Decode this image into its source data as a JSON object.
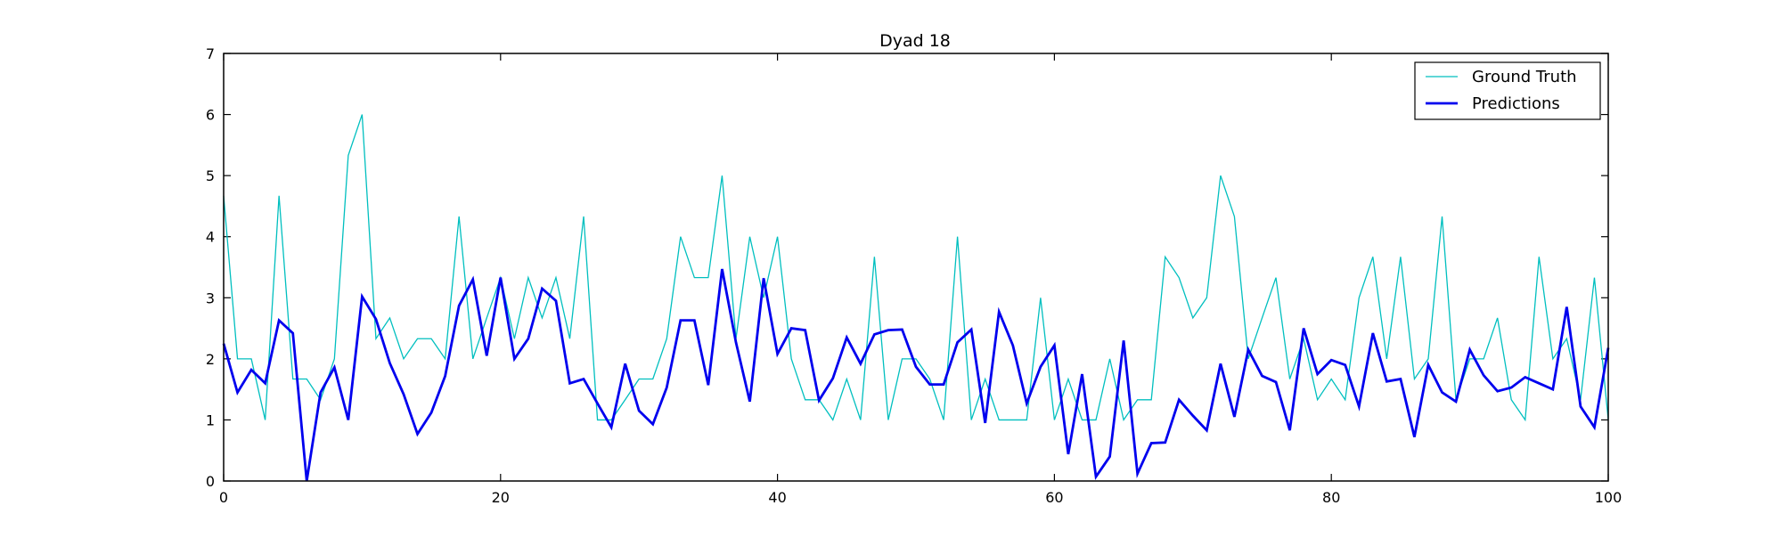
{
  "chart_data": {
    "type": "line",
    "title": "Dyad 18",
    "xlabel": "",
    "ylabel": "",
    "xlim": [
      0,
      100
    ],
    "ylim": [
      0,
      7
    ],
    "x_ticks": [
      0,
      20,
      40,
      60,
      80,
      100
    ],
    "y_ticks": [
      0,
      1,
      2,
      3,
      4,
      5,
      6,
      7
    ],
    "grid": false,
    "legend_position": "top-right",
    "series": [
      {
        "name": "Ground Truth",
        "color": "#00bfbf",
        "values": [
          4.67,
          2.0,
          2.0,
          1.0,
          4.67,
          1.67,
          1.67,
          1.33,
          2.0,
          5.33,
          6.0,
          2.33,
          2.67,
          2.0,
          2.33,
          2.33,
          2.0,
          4.33,
          2.0,
          2.67,
          3.33,
          2.33,
          3.33,
          2.67,
          3.33,
          2.33,
          4.33,
          1.0,
          1.0,
          1.33,
          1.67,
          1.67,
          2.33,
          4.0,
          3.33,
          3.33,
          5.0,
          2.33,
          4.0,
          3.0,
          4.0,
          2.0,
          1.33,
          1.33,
          1.0,
          1.67,
          1.0,
          3.67,
          1.0,
          2.0,
          2.0,
          1.67,
          1.0,
          4.0,
          1.0,
          1.67,
          1.0,
          1.0,
          1.0,
          3.0,
          1.0,
          1.67,
          1.0,
          1.0,
          2.0,
          1.0,
          1.33,
          1.33,
          3.67,
          3.33,
          2.67,
          3.0,
          5.0,
          4.33,
          2.0,
          2.67,
          3.33,
          1.67,
          2.33,
          1.33,
          1.67,
          1.33,
          3.0,
          3.67,
          2.0,
          3.67,
          1.67,
          2.0,
          4.33,
          1.33,
          2.0,
          2.0,
          2.67,
          1.33,
          1.0,
          3.67,
          2.0,
          2.33,
          1.33,
          3.33,
          1.0
        ]
      },
      {
        "name": "Predictions",
        "color": "#0000ee",
        "values": [
          2.25,
          1.45,
          1.82,
          1.6,
          2.63,
          2.42,
          0.0,
          1.45,
          1.86,
          1.0,
          3.02,
          2.65,
          1.93,
          1.42,
          0.77,
          1.12,
          1.72,
          2.87,
          3.3,
          2.05,
          3.33,
          2.0,
          2.33,
          3.15,
          2.95,
          1.6,
          1.67,
          1.27,
          0.88,
          1.92,
          1.15,
          0.93,
          1.53,
          2.63,
          2.63,
          1.57,
          3.47,
          2.27,
          1.3,
          3.32,
          2.08,
          2.5,
          2.47,
          1.32,
          1.68,
          2.35,
          1.92,
          2.4,
          2.47,
          2.48,
          1.87,
          1.58,
          1.58,
          2.27,
          2.48,
          0.95,
          2.77,
          2.22,
          1.27,
          1.87,
          2.22,
          0.44,
          1.75,
          0.07,
          0.4,
          2.3,
          0.12,
          0.62,
          0.63,
          1.33,
          1.07,
          0.83,
          1.92,
          1.05,
          2.15,
          1.72,
          1.62,
          0.83,
          2.5,
          1.75,
          1.98,
          1.9,
          1.22,
          2.42,
          1.63,
          1.67,
          0.72,
          1.9,
          1.45,
          1.3,
          2.15,
          1.73,
          1.47,
          1.53,
          1.7,
          1.6,
          1.5,
          2.85,
          1.22,
          0.88,
          2.18
        ]
      }
    ]
  }
}
